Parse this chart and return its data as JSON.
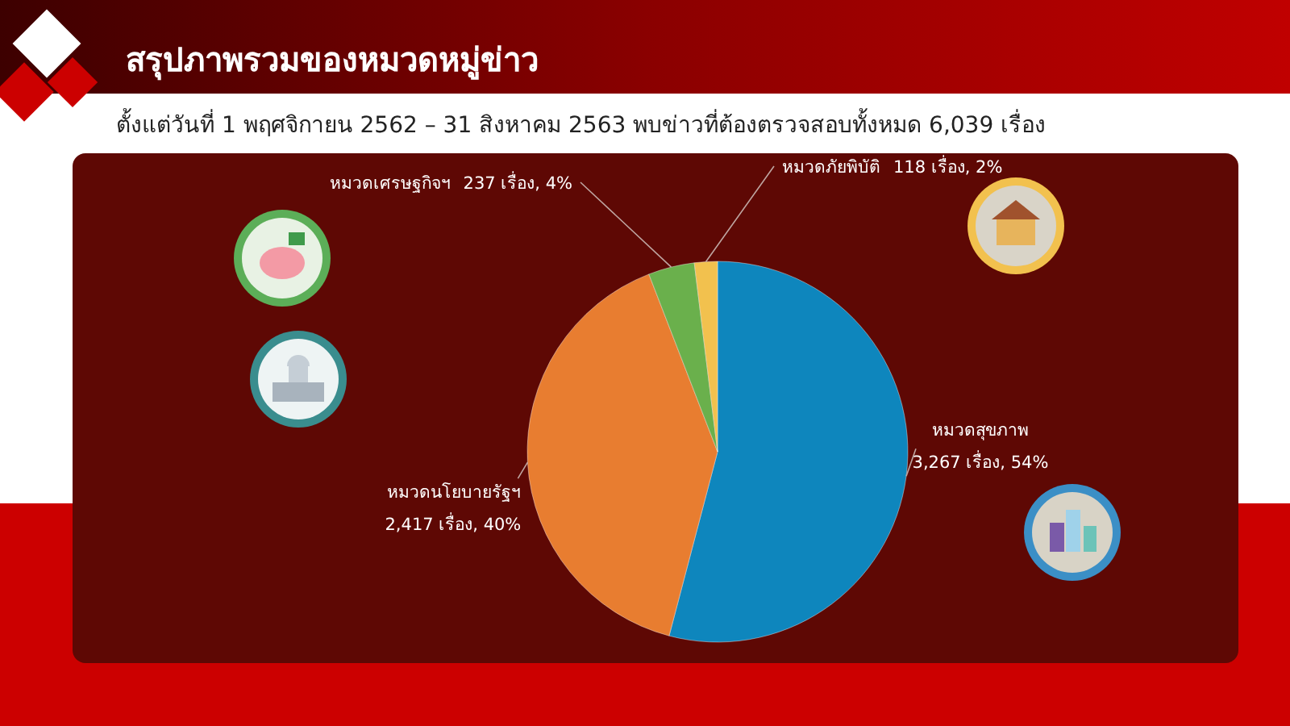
{
  "chart_data": {
    "type": "pie",
    "title": "สรุปภาพรวมของหมวดหมู่ข่าว",
    "subtitle": "ตั้งแต่วันที่ 1 พฤศจิกายน 2562 – 31 สิงหาคม 2563 พบข่าวที่ต้องตรวจสอบทั้งหมด 6,039 เรื่อง",
    "categories": [
      "หมวดสุขภาพ",
      "หมวดนโยบายรัฐฯ",
      "หมวดเศรษฐกิจฯ",
      "หมวดภัยพิบัติ"
    ],
    "values": [
      3267,
      2417,
      237,
      118
    ],
    "value_labels": [
      "3,267 เรื่อง, 54%",
      "2,417 เรื่อง, 40%",
      "237 เรื่อง, 4%",
      "118 เรื่อง, 2%"
    ],
    "colors": [
      "#0e86bd",
      "#e87d30",
      "#6ab04c",
      "#f2c14e"
    ]
  }
}
